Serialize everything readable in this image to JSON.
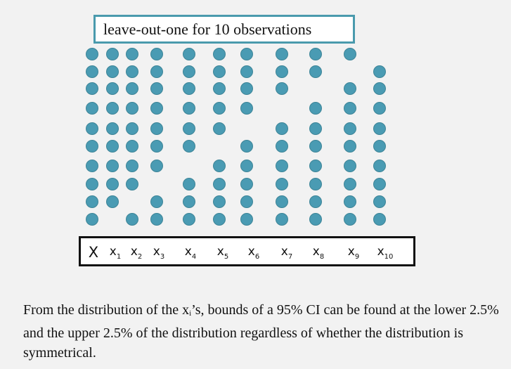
{
  "title": "leave-out-one for 10 observations",
  "labels": {
    "main": "X",
    "letter": "x",
    "subs": [
      "1",
      "2",
      "3",
      "4",
      "5",
      "6",
      "7",
      "8",
      "9",
      "10"
    ]
  },
  "columns": {
    "X": [
      1,
      1,
      1,
      1,
      1,
      1,
      1,
      1,
      1,
      1
    ],
    "x1": [
      1,
      1,
      1,
      1,
      1,
      1,
      1,
      1,
      1,
      0
    ],
    "x2": [
      1,
      1,
      1,
      1,
      1,
      1,
      1,
      1,
      0,
      1
    ],
    "x3": [
      1,
      1,
      1,
      1,
      1,
      1,
      1,
      0,
      1,
      1
    ],
    "x4": [
      1,
      1,
      1,
      1,
      1,
      1,
      0,
      1,
      1,
      1
    ],
    "x5": [
      1,
      1,
      1,
      1,
      1,
      0,
      1,
      1,
      1,
      1
    ],
    "x6": [
      1,
      1,
      1,
      1,
      0,
      1,
      1,
      1,
      1,
      1
    ],
    "x7": [
      1,
      1,
      1,
      0,
      1,
      1,
      1,
      1,
      1,
      1
    ],
    "x8": [
      1,
      1,
      0,
      1,
      1,
      1,
      1,
      1,
      1,
      1
    ],
    "x9": [
      1,
      0,
      1,
      1,
      1,
      1,
      1,
      1,
      1,
      1
    ],
    "x10": [
      0,
      1,
      1,
      1,
      1,
      1,
      1,
      1,
      1,
      1
    ]
  },
  "dot_color": "#4a9bb3",
  "footnote": {
    "before": "From the distribution of the x",
    "sub": "i",
    "after": "’s, bounds of a 95% CI can be found at the lower 2.5% and the upper 2.5% of the distribution regardless of whether the distribution is symmetrical."
  }
}
